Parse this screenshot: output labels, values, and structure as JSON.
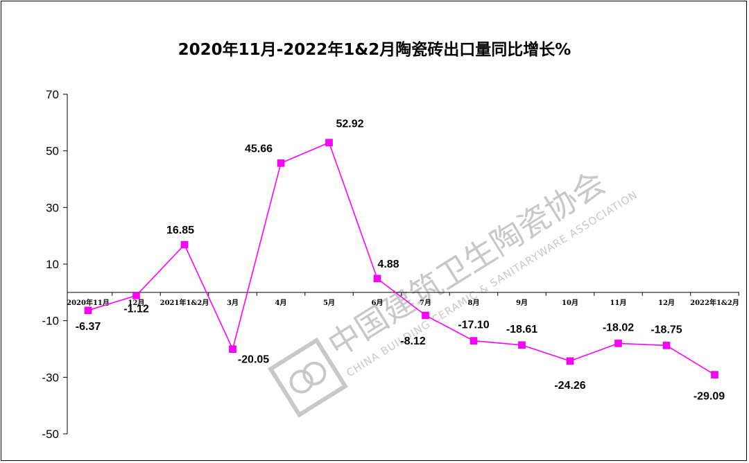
{
  "chart_data": {
    "type": "line",
    "title": "2020年11月-2022年1&2月陶瓷砖出口量同比增长%",
    "categories": [
      "2020年11月",
      "12月",
      "2021年1&2月",
      "3月",
      "4月",
      "5月",
      "6月",
      "7月",
      "8月",
      "9月",
      "10月",
      "11月",
      "12月",
      "2022年1&2月"
    ],
    "values": [
      -6.37,
      -1.12,
      16.85,
      -20.05,
      45.66,
      52.92,
      4.88,
      -8.12,
      -17.1,
      -18.61,
      -24.26,
      -18.02,
      -18.75,
      -29.09
    ],
    "data_labels": [
      "-6.37",
      "-1.12",
      "16.85",
      "-20.05",
      "45.66",
      "52.92",
      "4.88",
      "-8.12",
      "-17.10",
      "-18.61",
      "-24.26",
      "-18.02",
      "-18.75",
      "-29.09"
    ],
    "y_ticks": [
      "70",
      "50",
      "30",
      "10",
      "-10",
      "-30",
      "-50"
    ],
    "ylim": [
      -50,
      70
    ],
    "grid": false,
    "legend": "none",
    "colors": {
      "series": "#ff00ff",
      "axis": "#000000"
    },
    "xlabel": "",
    "ylabel": ""
  },
  "watermark": {
    "text_cn": "中国建筑卫生陶瓷协会",
    "text_en": "CHINA BUILDING CERAMIC & SANITARYWARE ASSOCIATION",
    "color": "#c8c8c8"
  }
}
